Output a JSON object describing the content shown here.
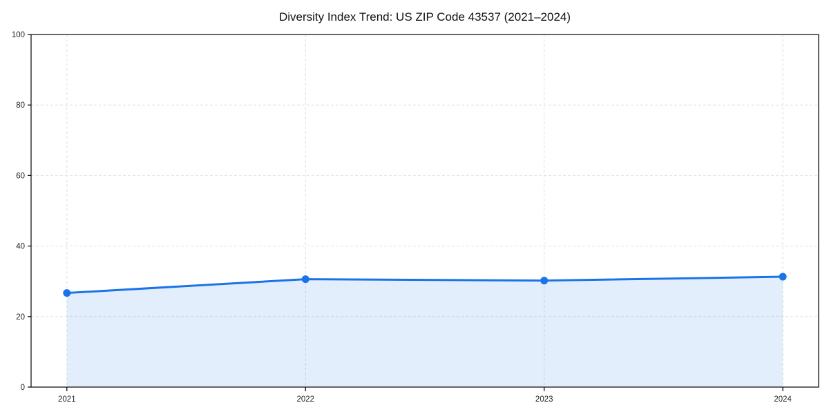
{
  "chart_data": {
    "type": "line",
    "title": "Diversity Index Trend: US ZIP Code 43537 (2021–2024)",
    "x": [
      2021,
      2022,
      2023,
      2024
    ],
    "x_tick_labels": [
      "2021",
      "2022",
      "2023",
      "2024"
    ],
    "series": [
      {
        "name": "Diversity Index",
        "values": [
          26.7,
          30.6,
          30.2,
          31.3
        ]
      }
    ],
    "xlabel": "",
    "ylabel": "",
    "ylim": [
      0,
      100
    ],
    "y_ticks": [
      0,
      20,
      40,
      60,
      80,
      100
    ],
    "grid": "dashed-both-axes",
    "legend": "none",
    "line_color": "#1a73e8",
    "marker": "filled-circle",
    "area_fill_color": "#1a73e8",
    "area_fill_opacity": 0.12,
    "gridline_color": "#e0e0e0",
    "frame_color": "#000000",
    "background_color": "#ffffff"
  }
}
